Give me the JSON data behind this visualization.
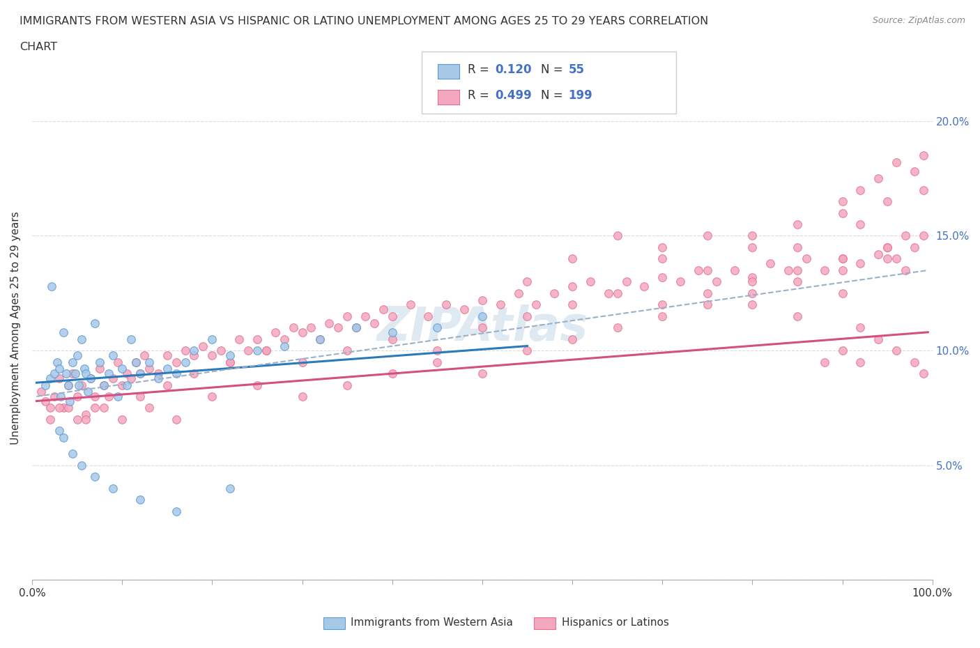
{
  "title_line1": "IMMIGRANTS FROM WESTERN ASIA VS HISPANIC OR LATINO UNEMPLOYMENT AMONG AGES 25 TO 29 YEARS CORRELATION",
  "title_line2": "CHART",
  "source": "Source: ZipAtlas.com",
  "ylabel": "Unemployment Among Ages 25 to 29 years",
  "xlim": [
    0,
    100
  ],
  "ylim": [
    0,
    22
  ],
  "xtick_positions": [
    0,
    10,
    20,
    30,
    40,
    50,
    60,
    70,
    80,
    90,
    100
  ],
  "xticklabels": [
    "0.0%",
    "",
    "",
    "",
    "",
    "",
    "",
    "",
    "",
    "",
    "100.0%"
  ],
  "ytick_positions": [
    0,
    5,
    10,
    15,
    20
  ],
  "yticklabels_right": [
    "",
    "5.0%",
    "10.0%",
    "15.0%",
    "20.0%"
  ],
  "watermark": "ZIPAtlas",
  "color_blue_fill": "#a8c8e8",
  "color_blue_edge": "#5b9bd5",
  "color_blue_line": "#2b7bba",
  "color_pink_fill": "#f4a8c0",
  "color_pink_edge": "#e87090",
  "color_pink_line": "#d45080",
  "color_dashed": "#9ab0c8",
  "color_grid": "#cccccc",
  "color_tick": "#4472c4",
  "background_color": "#ffffff",
  "blue_x": [
    1.5,
    2.0,
    2.2,
    2.5,
    2.8,
    3.0,
    3.2,
    3.5,
    3.8,
    4.0,
    4.2,
    4.5,
    4.8,
    5.0,
    5.2,
    5.5,
    5.8,
    6.0,
    6.2,
    6.5,
    7.0,
    7.5,
    8.0,
    8.5,
    9.0,
    9.5,
    10.0,
    10.5,
    11.0,
    11.5,
    12.0,
    13.0,
    14.0,
    15.0,
    16.0,
    17.0,
    18.0,
    20.0,
    22.0,
    25.0,
    28.0,
    32.0,
    36.0,
    40.0,
    45.0,
    50.0,
    3.0,
    3.5,
    4.5,
    5.5,
    7.0,
    9.0,
    12.0,
    16.0,
    22.0
  ],
  "blue_y": [
    8.5,
    8.8,
    12.8,
    9.0,
    9.5,
    9.2,
    8.0,
    10.8,
    9.0,
    8.5,
    7.8,
    9.5,
    9.0,
    9.8,
    8.5,
    10.5,
    9.2,
    9.0,
    8.2,
    8.8,
    11.2,
    9.5,
    8.5,
    9.0,
    9.8,
    8.0,
    9.2,
    8.5,
    10.5,
    9.5,
    9.0,
    9.5,
    8.8,
    9.2,
    9.0,
    9.5,
    10.0,
    10.5,
    9.8,
    10.0,
    10.2,
    10.5,
    11.0,
    10.8,
    11.0,
    11.5,
    6.5,
    6.2,
    5.5,
    5.0,
    4.5,
    4.0,
    3.5,
    3.0,
    4.0
  ],
  "pink_x": [
    1.0,
    1.5,
    2.0,
    2.5,
    3.0,
    3.5,
    4.0,
    4.5,
    5.0,
    5.5,
    6.0,
    6.5,
    7.0,
    7.5,
    8.0,
    8.5,
    9.0,
    9.5,
    10.0,
    10.5,
    11.0,
    11.5,
    12.0,
    12.5,
    13.0,
    14.0,
    15.0,
    16.0,
    17.0,
    18.0,
    19.0,
    20.0,
    21.0,
    22.0,
    23.0,
    24.0,
    25.0,
    26.0,
    27.0,
    28.0,
    29.0,
    30.0,
    31.0,
    32.0,
    33.0,
    34.0,
    35.0,
    36.0,
    37.0,
    38.0,
    39.0,
    40.0,
    42.0,
    44.0,
    46.0,
    48.0,
    50.0,
    52.0,
    54.0,
    56.0,
    58.0,
    60.0,
    62.0,
    64.0,
    66.0,
    68.0,
    70.0,
    72.0,
    74.0,
    76.0,
    78.0,
    80.0,
    82.0,
    84.0,
    86.0,
    88.0,
    90.0,
    92.0,
    94.0,
    96.0,
    98.0,
    3.0,
    5.0,
    7.0,
    10.0,
    13.0,
    16.0,
    20.0,
    25.0,
    30.0,
    35.0,
    40.0,
    45.0,
    50.0,
    55.0,
    60.0,
    65.0,
    70.0,
    75.0,
    80.0,
    85.0,
    90.0,
    95.0,
    2.0,
    4.0,
    6.0,
    8.0,
    12.0,
    15.0,
    18.0,
    22.0,
    26.0,
    30.0,
    35.0,
    40.0,
    45.0,
    50.0,
    55.0,
    60.0,
    65.0,
    70.0,
    75.0,
    80.0,
    85.0,
    90.0,
    95.0,
    55.0,
    60.0,
    65.0,
    70.0,
    75.0,
    80.0,
    85.0,
    90.0,
    92.0,
    94.0,
    96.0,
    98.0,
    99.0,
    70.0,
    75.0,
    80.0,
    85.0,
    90.0,
    92.0,
    95.0,
    97.0,
    99.0,
    80.0,
    85.0,
    90.0,
    92.0,
    95.0,
    97.0,
    99.0,
    88.0,
    90.0,
    92.0,
    94.0,
    96.0,
    98.0,
    99.0
  ],
  "pink_y": [
    8.2,
    7.8,
    7.5,
    8.0,
    8.8,
    7.5,
    8.5,
    9.0,
    8.0,
    8.5,
    7.2,
    8.8,
    8.0,
    9.2,
    8.5,
    8.0,
    8.8,
    9.5,
    8.5,
    9.0,
    8.8,
    9.5,
    9.0,
    9.8,
    9.2,
    9.0,
    9.8,
    9.5,
    10.0,
    9.8,
    10.2,
    9.8,
    10.0,
    9.5,
    10.5,
    10.0,
    10.5,
    10.0,
    10.8,
    10.5,
    11.0,
    10.8,
    11.0,
    10.5,
    11.2,
    11.0,
    11.5,
    11.0,
    11.5,
    11.2,
    11.8,
    11.5,
    12.0,
    11.5,
    12.0,
    11.8,
    12.2,
    12.0,
    12.5,
    12.0,
    12.5,
    12.8,
    13.0,
    12.5,
    13.0,
    12.8,
    13.2,
    13.0,
    13.5,
    13.0,
    13.5,
    13.2,
    13.8,
    13.5,
    14.0,
    13.5,
    14.0,
    13.8,
    14.2,
    14.0,
    14.5,
    7.5,
    7.0,
    7.5,
    7.0,
    7.5,
    7.0,
    8.0,
    8.5,
    8.0,
    8.5,
    9.0,
    9.5,
    9.0,
    10.0,
    10.5,
    11.0,
    11.5,
    12.0,
    12.5,
    13.0,
    13.5,
    14.5,
    7.0,
    7.5,
    7.0,
    7.5,
    8.0,
    8.5,
    9.0,
    9.5,
    10.0,
    9.5,
    10.0,
    10.5,
    10.0,
    11.0,
    11.5,
    12.0,
    12.5,
    12.0,
    12.5,
    13.0,
    13.5,
    14.0,
    14.5,
    13.0,
    14.0,
    15.0,
    14.5,
    15.0,
    14.5,
    15.5,
    16.5,
    17.0,
    17.5,
    18.2,
    17.8,
    18.5,
    14.0,
    13.5,
    15.0,
    14.5,
    16.0,
    15.5,
    16.5,
    15.0,
    17.0,
    12.0,
    11.5,
    12.5,
    11.0,
    14.0,
    13.5,
    15.0,
    9.5,
    10.0,
    9.5,
    10.5,
    10.0,
    9.5,
    9.0
  ],
  "blue_line_x0": 0.5,
  "blue_line_x1": 55.0,
  "blue_line_y0": 8.6,
  "blue_line_y1": 10.2,
  "pink_line_x0": 0.5,
  "pink_line_x1": 99.5,
  "pink_line_y0": 7.8,
  "pink_line_y1": 10.8,
  "dashed_line_x0": 0.5,
  "dashed_line_x1": 99.5,
  "dashed_line_y0": 8.0,
  "dashed_line_y1": 13.5
}
